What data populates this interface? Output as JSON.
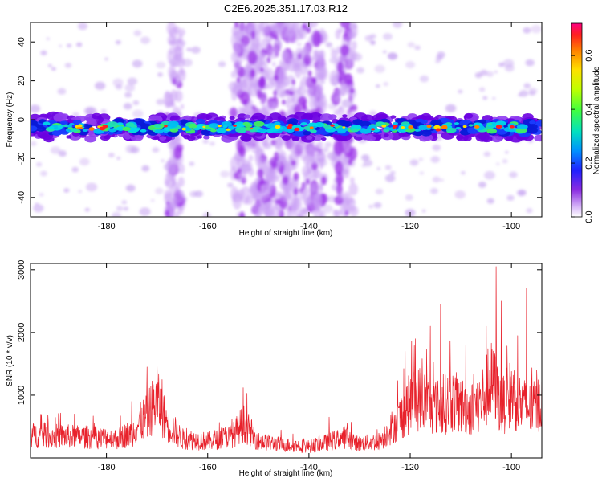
{
  "title": "C2E6.2025.351.17.03.R12",
  "chart_data": [
    {
      "type": "heatmap",
      "name": "spectrogram",
      "xlabel": "Height of straight line (km)",
      "ylabel": "Frequency (Hz)",
      "xlim": [
        -195,
        -94
      ],
      "ylim": [
        -50,
        50
      ],
      "xticks": [
        -180,
        -160,
        -140,
        -120,
        -100
      ],
      "yticks": [
        -40,
        -20,
        0,
        20,
        40
      ],
      "main_band_center_hz": -4,
      "main_band_halfwidth_hz": 6,
      "broadband_columns_km": [
        {
          "from": -168,
          "to": -165
        },
        {
          "from": -155,
          "to": -137
        },
        {
          "from": -135,
          "to": -131
        }
      ],
      "colorbar": {
        "label": "Normalized spectral amplitude",
        "range": [
          0.0,
          0.72
        ],
        "ticks": [
          0.0,
          0.2,
          0.4,
          0.6
        ],
        "tick_labels": [
          "0.0",
          "0.2",
          "0.4",
          "0.6"
        ]
      }
    },
    {
      "type": "line",
      "name": "snr",
      "xlabel": "Height of straight line (km)",
      "ylabel": "SNR (10 * v/v)",
      "xlim": [
        -195,
        -94
      ],
      "ylim": [
        0,
        3100
      ],
      "xticks": [
        -180,
        -160,
        -140,
        -120,
        -100
      ],
      "yticks": [
        1000,
        2000,
        3000
      ],
      "color": "#e8212b",
      "envelope": {
        "x": [
          -195,
          -185,
          -178,
          -175,
          -172,
          -170,
          -168,
          -165,
          -160,
          -155,
          -153,
          -150,
          -145,
          -140,
          -136,
          -133,
          -130,
          -126,
          -122,
          -120,
          -118,
          -116,
          -114,
          -112,
          -110,
          -108,
          -106,
          -104,
          -103,
          -102,
          -100,
          -98,
          -96,
          -94
        ],
        "y": [
          450,
          420,
          380,
          500,
          850,
          1150,
          700,
          380,
          330,
          450,
          700,
          330,
          260,
          230,
          320,
          420,
          280,
          330,
          800,
          1100,
          1200,
          1050,
          1000,
          1150,
          1050,
          950,
          1150,
          1500,
          1350,
          1000,
          1300,
          1050,
          950,
          1100
        ]
      },
      "peaks": {
        "x": [
          -195,
          -175,
          -172,
          -170,
          -169,
          -153,
          -136,
          -121,
          -119,
          -116,
          -114,
          -109,
          -105,
          -103,
          -102,
          -97,
          -96,
          -95,
          -94
        ],
        "y": [
          800,
          900,
          1450,
          1550,
          1250,
          1120,
          650,
          1700,
          1900,
          2100,
          2450,
          1800,
          2100,
          3050,
          2500,
          2700,
          1200,
          1400,
          1650
        ]
      }
    }
  ]
}
